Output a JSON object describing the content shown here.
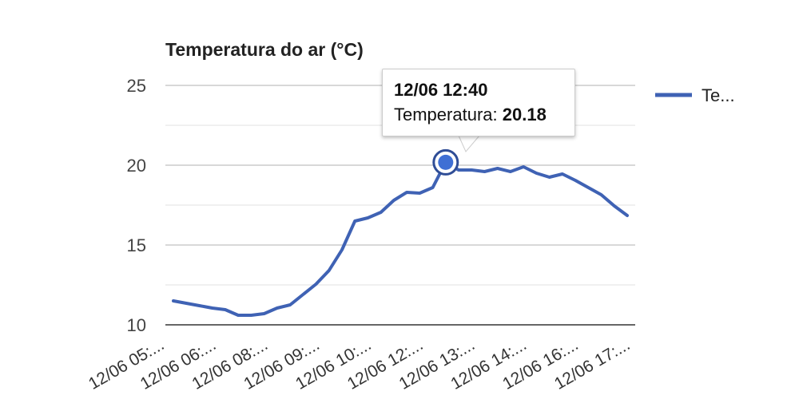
{
  "chart_data": {
    "type": "line",
    "title": "Temperatura do ar (°C)",
    "xlabel": "",
    "ylabel": "",
    "ylim": [
      10,
      25
    ],
    "yticks": [
      "10",
      "15",
      "20",
      "25"
    ],
    "minor_gridlines": [
      12.5,
      17.5,
      22.5
    ],
    "grid": true,
    "legend_position": "right",
    "xtick_labels": [
      "12/06 05:...",
      "12/06 06:...",
      "12/06 08:...",
      "12/06 09:...",
      "12/06 10:...",
      "12/06 12:...",
      "12/06 13:...",
      "12/06 14:...",
      "12/06 16:...",
      "12/06 17:..."
    ],
    "series": [
      {
        "name": "Te...",
        "color": "#3f62b4",
        "values": [
          11.5,
          11.35,
          11.2,
          11.05,
          10.95,
          10.6,
          10.6,
          10.7,
          11.05,
          11.25,
          11.9,
          12.55,
          13.4,
          14.7,
          16.5,
          16.7,
          17.05,
          17.8,
          18.3,
          18.25,
          18.6,
          20.18,
          19.7,
          19.7,
          19.6,
          19.8,
          19.6,
          19.9,
          19.5,
          19.25,
          19.45,
          19.05,
          18.6,
          18.15,
          17.45,
          16.85
        ]
      }
    ],
    "highlight": {
      "index": 21,
      "label": "12/06 12:40",
      "series_label": "Temperatura:",
      "value": "20.18"
    }
  }
}
